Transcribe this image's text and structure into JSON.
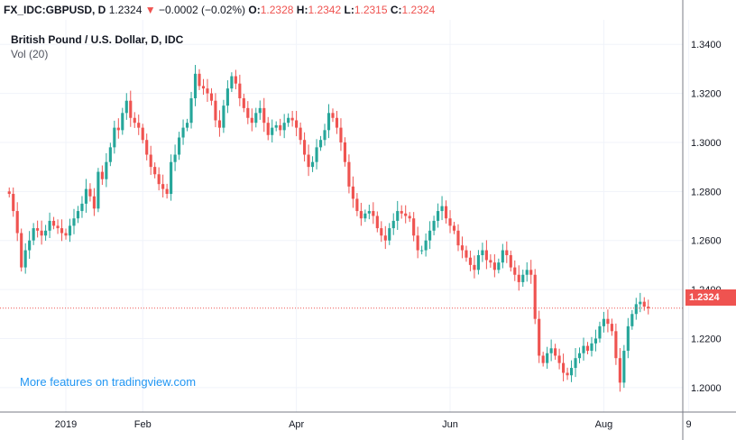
{
  "header": {
    "symbol": "FX_IDC:GBPUSD, D",
    "last": "1.2324",
    "change_arrow": "▼",
    "change": "−0.0002 (−0.02%)",
    "open_label": "O:",
    "open": "1.2328",
    "high_label": "H:",
    "high": "1.2342",
    "low_label": "L:",
    "low": "1.2315",
    "close_label": "C:",
    "close": "1.2324"
  },
  "legend": {
    "title": "British Pound / U.S. Dollar, D, IDC",
    "volume": "Vol (20)"
  },
  "watermark": "More features on tradingview.com",
  "colors": {
    "up": "#26a69a",
    "down": "#ef5350",
    "grid": "#f0f3fa",
    "axis_text": "#131722",
    "price_line": "#ef5350",
    "link": "#2196f3"
  },
  "current_price_label": "1.2324",
  "chart_data": {
    "type": "candlestick",
    "title": "British Pound / U.S. Dollar, D, IDC",
    "ylim": [
      1.19,
      1.35
    ],
    "y_ticks": [
      "1.3400",
      "1.3200",
      "1.3000",
      "1.2800",
      "1.2600",
      "1.2400",
      "1.2200",
      "1.2000"
    ],
    "y_tick_values": [
      1.34,
      1.32,
      1.3,
      1.28,
      1.26,
      1.24,
      1.22,
      1.2
    ],
    "x_tick_labels": [
      "2019",
      "Feb",
      "Apr",
      "Jun",
      "Aug",
      "9"
    ],
    "x_tick_bar_index": [
      14,
      33,
      71,
      109,
      147,
      168
    ],
    "current_price": 1.2324,
    "grid": true,
    "close": [
      1.279,
      1.272,
      1.263,
      1.249,
      1.256,
      1.26,
      1.265,
      1.264,
      1.262,
      1.264,
      1.268,
      1.266,
      1.265,
      1.263,
      1.262,
      1.266,
      1.269,
      1.272,
      1.275,
      1.281,
      1.278,
      1.273,
      1.288,
      1.285,
      1.292,
      1.298,
      1.306,
      1.305,
      1.312,
      1.317,
      1.31,
      1.308,
      1.306,
      1.301,
      1.295,
      1.29,
      1.287,
      1.283,
      1.281,
      1.279,
      1.292,
      1.295,
      1.302,
      1.306,
      1.308,
      1.318,
      1.328,
      1.323,
      1.322,
      1.32,
      1.317,
      1.309,
      1.306,
      1.315,
      1.322,
      1.327,
      1.324,
      1.318,
      1.314,
      1.31,
      1.308,
      1.312,
      1.314,
      1.308,
      1.303,
      1.306,
      1.307,
      1.305,
      1.308,
      1.31,
      1.309,
      1.306,
      1.301,
      1.295,
      1.29,
      1.292,
      1.298,
      1.301,
      1.305,
      1.312,
      1.31,
      1.306,
      1.3,
      1.292,
      1.282,
      1.277,
      1.272,
      1.269,
      1.271,
      1.272,
      1.27,
      1.265,
      1.262,
      1.26,
      1.265,
      1.268,
      1.272,
      1.271,
      1.27,
      1.269,
      1.262,
      1.256,
      1.256,
      1.26,
      1.264,
      1.268,
      1.272,
      1.274,
      1.269,
      1.266,
      1.264,
      1.258,
      1.256,
      1.253,
      1.25,
      1.248,
      1.254,
      1.256,
      1.252,
      1.251,
      1.248,
      1.251,
      1.256,
      1.254,
      1.249,
      1.246,
      1.243,
      1.246,
      1.248,
      1.246,
      1.228,
      1.213,
      1.21,
      1.214,
      1.216,
      1.213,
      1.21,
      1.206,
      1.205,
      1.208,
      1.212,
      1.214,
      1.217,
      1.215,
      1.218,
      1.22,
      1.225,
      1.228,
      1.226,
      1.223,
      1.212,
      1.202,
      1.215,
      1.225,
      1.23,
      1.234,
      1.235,
      1.233,
      1.2324
    ]
  }
}
